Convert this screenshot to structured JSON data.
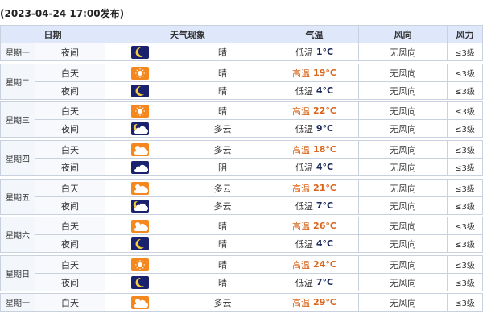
{
  "title": "(2023-04-24 17:00发布)",
  "headers": {
    "date": "日期",
    "weather": "天气现象",
    "temp": "气温",
    "wind": "风向",
    "power": "风力"
  },
  "colors": {
    "header_bg": "#dfe7fb",
    "high_temp": "#d9641a",
    "sun_icon_bg": "#f5871f",
    "night_icon_bg": "#1a2270"
  },
  "days": [
    {
      "date": "星期一",
      "rows": [
        {
          "period": "夜间",
          "icon": "moon-icon",
          "desc": "晴",
          "temp_label": "低温",
          "temp": "1°C",
          "wind": "无风向",
          "power": "≤3级"
        }
      ]
    },
    {
      "date": "星期二",
      "rows": [
        {
          "period": "白天",
          "icon": "sun-icon",
          "desc": "晴",
          "temp_label": "高温",
          "temp": "19°C",
          "wind": "无风向",
          "power": "≤3级"
        },
        {
          "period": "夜间",
          "icon": "moon-icon",
          "desc": "晴",
          "temp_label": "低温",
          "temp": "4°C",
          "wind": "无风向",
          "power": "≤3级"
        }
      ]
    },
    {
      "date": "星期三",
      "rows": [
        {
          "period": "白天",
          "icon": "sun-icon",
          "desc": "晴",
          "temp_label": "高温",
          "temp": "22°C",
          "wind": "无风向",
          "power": "≤3级"
        },
        {
          "period": "夜间",
          "icon": "moon-cloud-icon",
          "desc": "多云",
          "temp_label": "低温",
          "temp": "9°C",
          "wind": "无风向",
          "power": "≤3级"
        }
      ]
    },
    {
      "date": "星期四",
      "rows": [
        {
          "period": "白天",
          "icon": "sun-cloud-icon",
          "desc": "多云",
          "temp_label": "高温",
          "temp": "18°C",
          "wind": "无风向",
          "power": "≤3级"
        },
        {
          "period": "夜间",
          "icon": "cloud-icon",
          "desc": "阴",
          "temp_label": "低温",
          "temp": "4°C",
          "wind": "无风向",
          "power": "≤3级"
        }
      ]
    },
    {
      "date": "星期五",
      "rows": [
        {
          "period": "白天",
          "icon": "sun-cloud-icon",
          "desc": "多云",
          "temp_label": "高温",
          "temp": "21°C",
          "wind": "无风向",
          "power": "≤3级"
        },
        {
          "period": "夜间",
          "icon": "moon-cloud-icon",
          "desc": "多云",
          "temp_label": "低温",
          "temp": "7°C",
          "wind": "无风向",
          "power": "≤3级"
        }
      ]
    },
    {
      "date": "星期六",
      "rows": [
        {
          "period": "白天",
          "icon": "sun-cloud-icon",
          "desc": "晴",
          "temp_label": "高温",
          "temp": "26°C",
          "wind": "无风向",
          "power": "≤3级"
        },
        {
          "period": "夜间",
          "icon": "moon-icon",
          "desc": "晴",
          "temp_label": "低温",
          "temp": "4°C",
          "wind": "无风向",
          "power": "≤3级"
        }
      ]
    },
    {
      "date": "星期日",
      "rows": [
        {
          "period": "白天",
          "icon": "sun-icon",
          "desc": "晴",
          "temp_label": "高温",
          "temp": "24°C",
          "wind": "无风向",
          "power": "≤3级"
        },
        {
          "period": "夜间",
          "icon": "moon-icon",
          "desc": "晴",
          "temp_label": "低温",
          "temp": "7°C",
          "wind": "无风向",
          "power": "≤3级"
        }
      ]
    },
    {
      "date": "星期一",
      "rows": [
        {
          "period": "白天",
          "icon": "sun-cloud-icon",
          "desc": "多云",
          "temp_label": "高温",
          "temp": "29°C",
          "wind": "无风向",
          "power": "≤3级"
        }
      ]
    }
  ]
}
